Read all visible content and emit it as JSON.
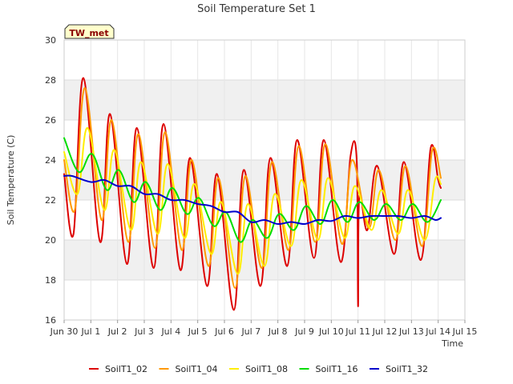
{
  "chart_data": {
    "type": "line",
    "title": "Soil Temperature Set 1",
    "xlabel": "Time",
    "ylabel": "Soil Temperature (C)",
    "site_tag": "TW_met",
    "ylim": [
      16,
      30
    ],
    "xlim": [
      0,
      15
    ],
    "y_ticks": [
      16,
      18,
      20,
      22,
      24,
      26,
      28,
      30
    ],
    "x_ticks": [
      {
        "x": 0,
        "label": "Jun 30"
      },
      {
        "x": 1,
        "label": "Jul 1"
      },
      {
        "x": 2,
        "label": "Jul 2"
      },
      {
        "x": 3,
        "label": "Jul 3"
      },
      {
        "x": 4,
        "label": "Jul 4"
      },
      {
        "x": 5,
        "label": "Jul 5"
      },
      {
        "x": 6,
        "label": "Jul 6"
      },
      {
        "x": 7,
        "label": "Jul 7"
      },
      {
        "x": 8,
        "label": "Jul 8"
      },
      {
        "x": 9,
        "label": "Jul 9"
      },
      {
        "x": 10,
        "label": "Jul 10"
      },
      {
        "x": 11,
        "label": "Jul 11"
      },
      {
        "x": 12,
        "label": "Jul 12"
      },
      {
        "x": 13,
        "label": "Jul 13"
      },
      {
        "x": 14,
        "label": "Jul 14"
      },
      {
        "x": 15,
        "label": "Jul 15"
      }
    ],
    "grid": true,
    "banded_background": true,
    "legend_position": "bottom",
    "series": [
      {
        "name": "SoilT1_02",
        "color": "#dd0000",
        "points": [
          [
            0.0,
            23.3
          ],
          [
            0.35,
            20.3
          ],
          [
            0.72,
            28.1
          ],
          [
            1.35,
            19.9
          ],
          [
            1.72,
            26.3
          ],
          [
            2.35,
            18.8
          ],
          [
            2.72,
            25.6
          ],
          [
            3.35,
            18.6
          ],
          [
            3.72,
            25.8
          ],
          [
            4.35,
            18.5
          ],
          [
            4.72,
            24.1
          ],
          [
            5.35,
            17.7
          ],
          [
            5.72,
            23.3
          ],
          [
            6.35,
            16.5
          ],
          [
            6.72,
            23.5
          ],
          [
            7.35,
            17.7
          ],
          [
            7.72,
            24.1
          ],
          [
            8.35,
            18.7
          ],
          [
            8.72,
            25.0
          ],
          [
            9.35,
            19.1
          ],
          [
            9.72,
            25.0
          ],
          [
            10.35,
            18.9
          ],
          [
            10.72,
            24.2
          ],
          [
            10.95,
            24.0
          ],
          [
            11.0,
            16.7
          ],
          [
            11.05,
            22.2
          ],
          [
            11.35,
            20.5
          ],
          [
            11.72,
            23.7
          ],
          [
            12.35,
            19.3
          ],
          [
            12.72,
            23.9
          ],
          [
            13.35,
            19.0
          ],
          [
            13.72,
            24.6
          ],
          [
            14.0,
            23.0
          ],
          [
            14.1,
            22.6
          ]
        ]
      },
      {
        "name": "SoilT1_04",
        "color": "#ff9900",
        "points": [
          [
            0.0,
            24.0
          ],
          [
            0.4,
            21.5
          ],
          [
            0.78,
            27.6
          ],
          [
            1.4,
            21.0
          ],
          [
            1.78,
            26.0
          ],
          [
            2.4,
            19.9
          ],
          [
            2.78,
            25.3
          ],
          [
            3.4,
            19.6
          ],
          [
            3.78,
            25.4
          ],
          [
            4.4,
            19.5
          ],
          [
            4.78,
            24.0
          ],
          [
            5.4,
            18.7
          ],
          [
            5.78,
            23.1
          ],
          [
            6.4,
            17.6
          ],
          [
            6.78,
            23.2
          ],
          [
            7.4,
            18.6
          ],
          [
            7.78,
            23.9
          ],
          [
            8.4,
            19.5
          ],
          [
            8.78,
            24.7
          ],
          [
            9.4,
            19.9
          ],
          [
            9.78,
            24.8
          ],
          [
            10.4,
            19.8
          ],
          [
            10.78,
            24.0
          ],
          [
            11.4,
            20.6
          ],
          [
            11.78,
            23.5
          ],
          [
            12.4,
            20.0
          ],
          [
            12.78,
            23.7
          ],
          [
            13.4,
            19.7
          ],
          [
            13.78,
            24.5
          ],
          [
            14.1,
            23.1
          ]
        ]
      },
      {
        "name": "SoilT1_08",
        "color": "#ffee00",
        "points": [
          [
            0.0,
            24.4
          ],
          [
            0.5,
            22.3
          ],
          [
            0.88,
            25.6
          ],
          [
            1.5,
            21.5
          ],
          [
            1.88,
            24.5
          ],
          [
            2.5,
            20.5
          ],
          [
            2.88,
            23.9
          ],
          [
            3.5,
            20.3
          ],
          [
            3.88,
            23.8
          ],
          [
            4.5,
            20.1
          ],
          [
            4.88,
            22.8
          ],
          [
            5.5,
            19.3
          ],
          [
            5.88,
            21.9
          ],
          [
            6.5,
            18.3
          ],
          [
            6.88,
            21.8
          ],
          [
            7.5,
            18.7
          ],
          [
            7.88,
            22.3
          ],
          [
            8.5,
            19.7
          ],
          [
            8.88,
            23.0
          ],
          [
            9.5,
            20.0
          ],
          [
            9.88,
            23.1
          ],
          [
            10.5,
            20.1
          ],
          [
            10.88,
            22.7
          ],
          [
            11.5,
            20.5
          ],
          [
            11.88,
            22.5
          ],
          [
            12.5,
            20.3
          ],
          [
            12.88,
            22.5
          ],
          [
            13.5,
            20.0
          ],
          [
            13.88,
            23.0
          ],
          [
            14.1,
            22.8
          ]
        ]
      },
      {
        "name": "SoilT1_16",
        "color": "#00dd00",
        "points": [
          [
            0.0,
            25.1
          ],
          [
            0.55,
            23.4
          ],
          [
            1.05,
            24.3
          ],
          [
            1.6,
            22.5
          ],
          [
            2.05,
            23.5
          ],
          [
            2.6,
            21.9
          ],
          [
            3.05,
            22.9
          ],
          [
            3.6,
            21.5
          ],
          [
            4.05,
            22.6
          ],
          [
            4.6,
            21.3
          ],
          [
            5.05,
            22.1
          ],
          [
            5.6,
            20.7
          ],
          [
            6.05,
            21.4
          ],
          [
            6.6,
            19.9
          ],
          [
            7.05,
            21.0
          ],
          [
            7.6,
            20.1
          ],
          [
            8.05,
            21.3
          ],
          [
            8.6,
            20.5
          ],
          [
            9.05,
            21.7
          ],
          [
            9.6,
            20.8
          ],
          [
            10.05,
            22.0
          ],
          [
            10.6,
            20.9
          ],
          [
            11.05,
            21.9
          ],
          [
            11.6,
            21.0
          ],
          [
            12.05,
            21.8
          ],
          [
            12.6,
            21.0
          ],
          [
            13.05,
            21.8
          ],
          [
            13.6,
            20.9
          ],
          [
            14.1,
            22.0
          ]
        ]
      },
      {
        "name": "SoilT1_32",
        "color": "#0000cc",
        "points": [
          [
            0.0,
            23.2
          ],
          [
            0.3,
            23.2
          ],
          [
            1.0,
            22.9
          ],
          [
            1.5,
            23.0
          ],
          [
            2.0,
            22.7
          ],
          [
            2.5,
            22.7
          ],
          [
            3.0,
            22.3
          ],
          [
            3.5,
            22.3
          ],
          [
            4.0,
            22.0
          ],
          [
            4.5,
            22.0
          ],
          [
            5.0,
            21.8
          ],
          [
            5.5,
            21.7
          ],
          [
            6.0,
            21.4
          ],
          [
            6.5,
            21.4
          ],
          [
            7.0,
            20.9
          ],
          [
            7.5,
            21.0
          ],
          [
            8.0,
            20.8
          ],
          [
            8.5,
            20.9
          ],
          [
            9.0,
            20.8
          ],
          [
            9.5,
            21.0
          ],
          [
            10.0,
            20.95
          ],
          [
            10.5,
            21.2
          ],
          [
            11.0,
            21.1
          ],
          [
            11.5,
            21.2
          ],
          [
            12.0,
            21.2
          ],
          [
            12.5,
            21.2
          ],
          [
            13.0,
            21.1
          ],
          [
            13.5,
            21.2
          ],
          [
            13.9,
            21.0
          ],
          [
            14.1,
            21.1
          ]
        ]
      }
    ]
  }
}
